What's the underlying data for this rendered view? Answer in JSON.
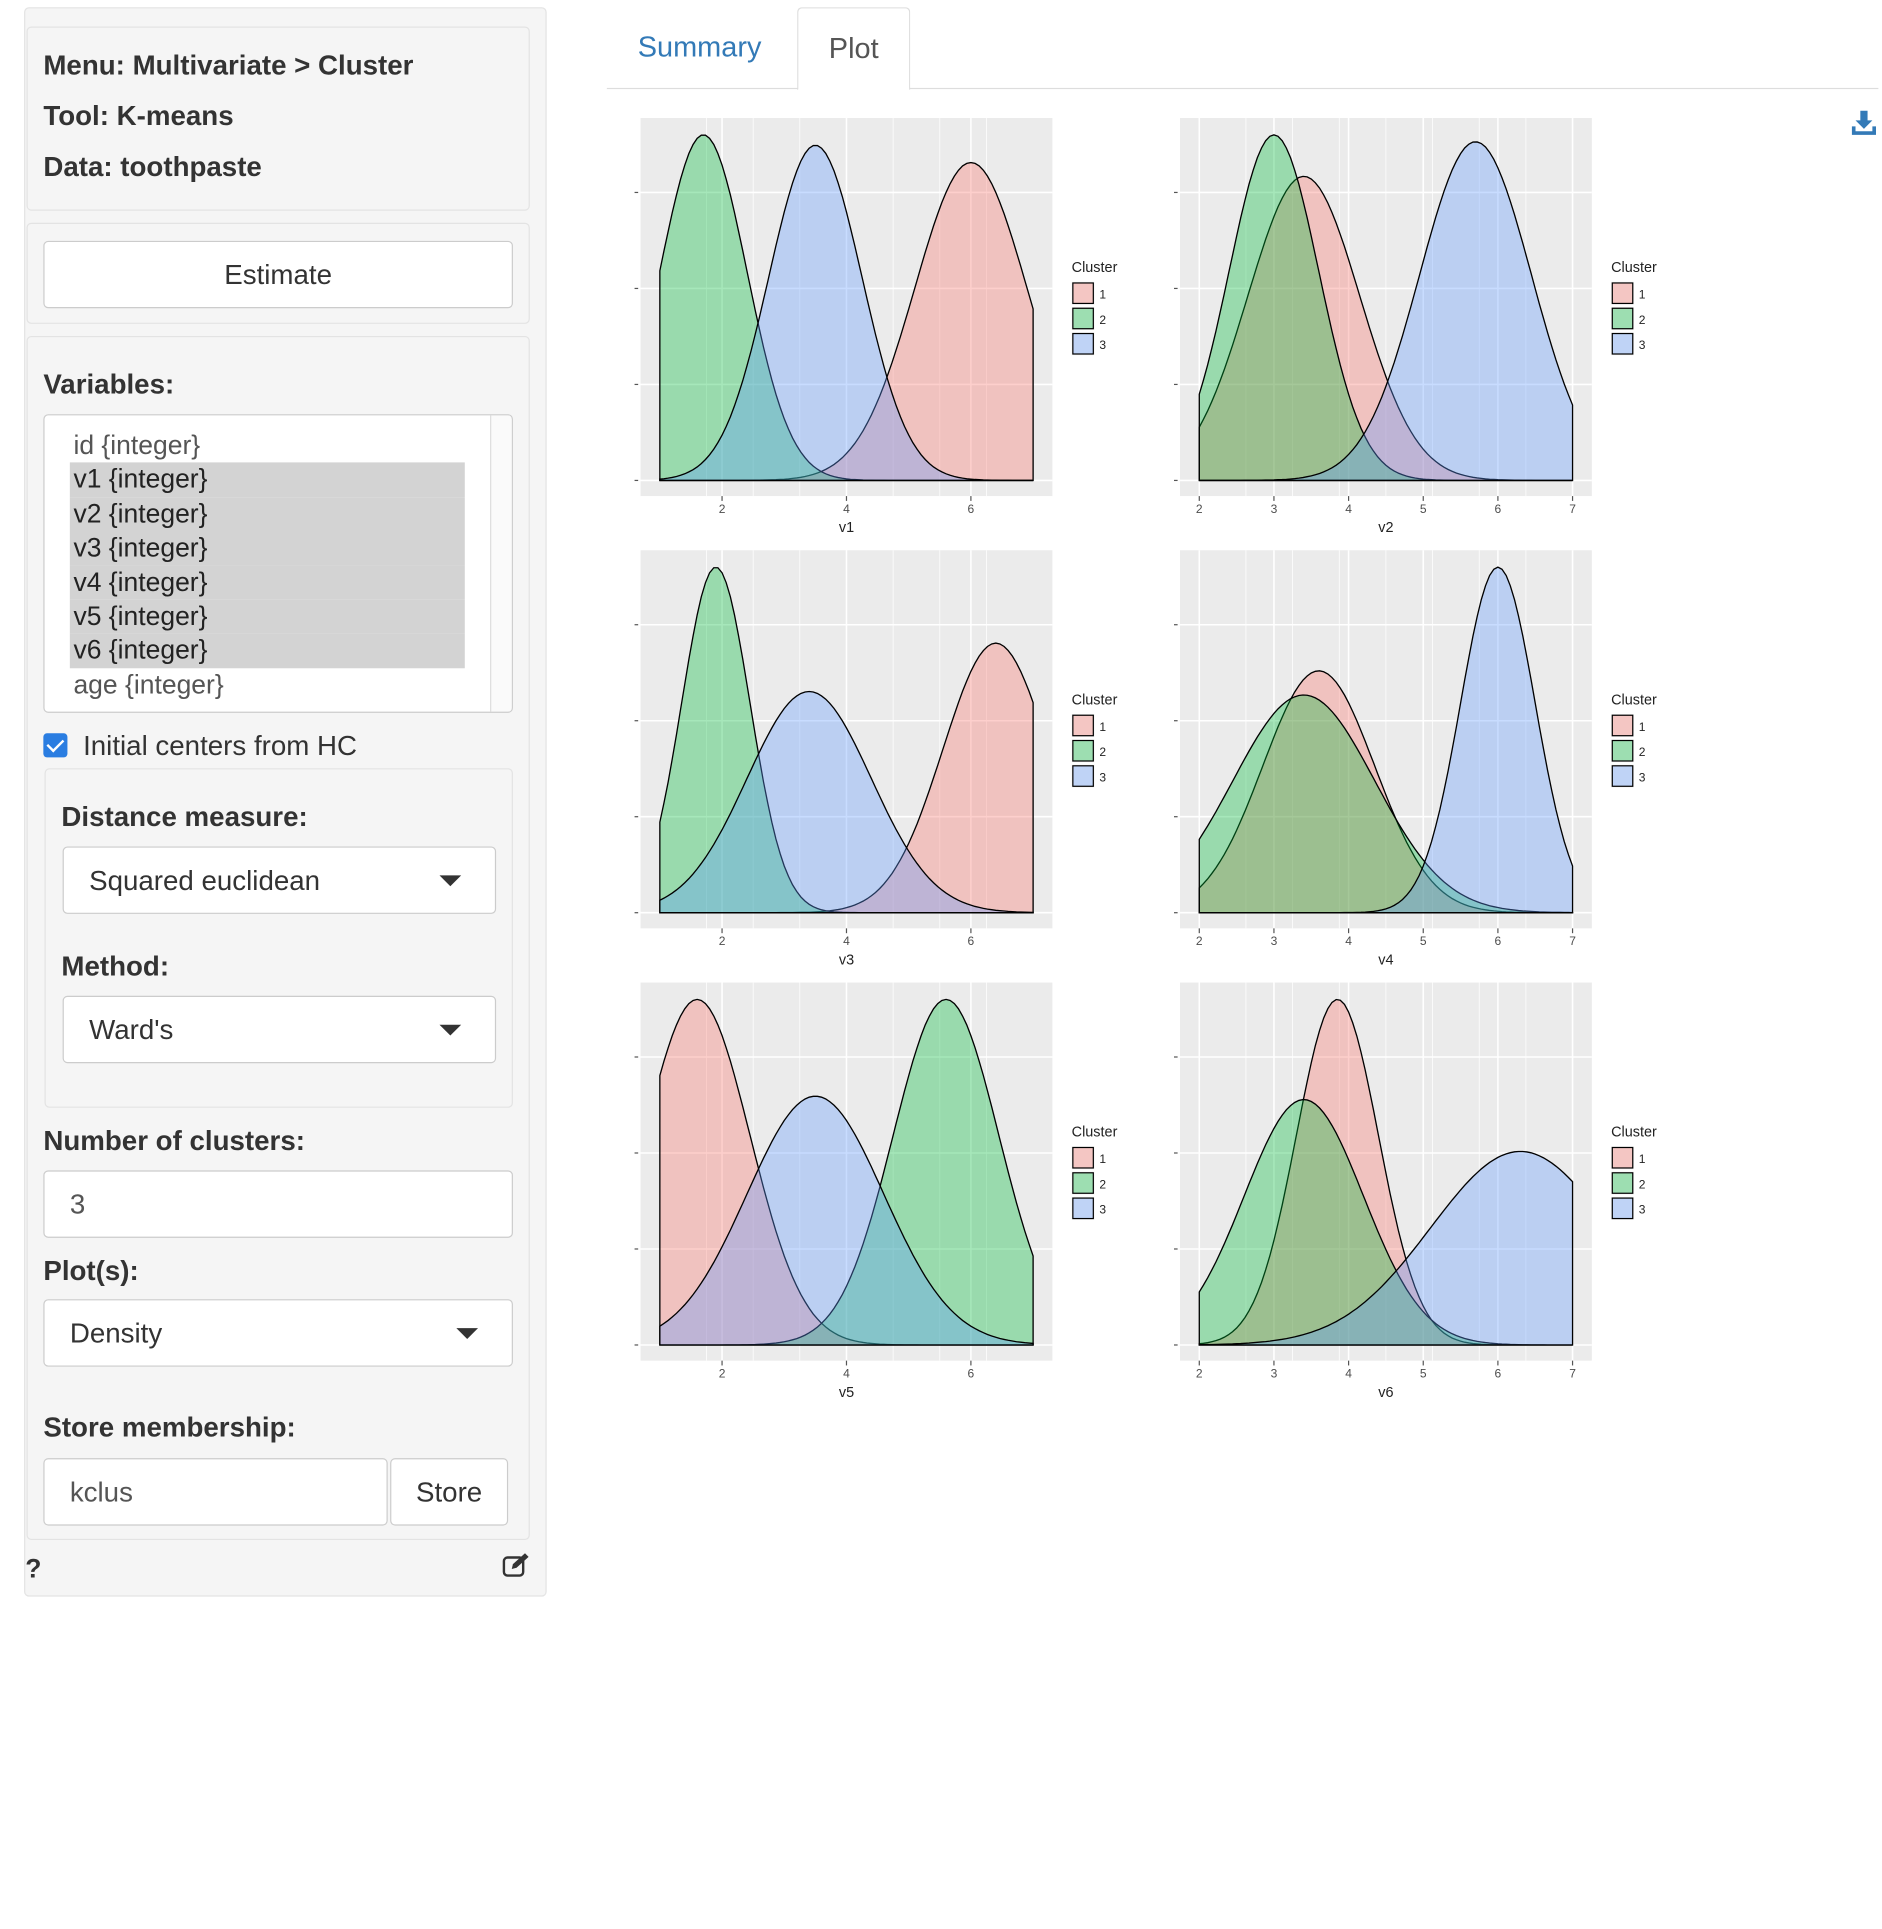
{
  "sidebar": {
    "info": {
      "menu": "Menu: Multivariate > Cluster",
      "tool": "Tool: K-means",
      "data": "Data: toothpaste"
    },
    "estimate_label": "Estimate",
    "variables_label": "Variables:",
    "variables": [
      {
        "label": "id {integer}",
        "selected": false
      },
      {
        "label": "v1 {integer}",
        "selected": true
      },
      {
        "label": "v2 {integer}",
        "selected": true
      },
      {
        "label": "v3 {integer}",
        "selected": true
      },
      {
        "label": "v4 {integer}",
        "selected": true
      },
      {
        "label": "v5 {integer}",
        "selected": true
      },
      {
        "label": "v6 {integer}",
        "selected": true
      },
      {
        "label": "age {integer}",
        "selected": false
      }
    ],
    "hc_checkbox": {
      "label": "Initial centers from HC",
      "checked": true
    },
    "distance_label": "Distance measure:",
    "distance_value": "Squared euclidean",
    "method_label": "Method:",
    "method_value": "Ward's",
    "nclus_label": "Number of clusters:",
    "nclus_value": "3",
    "plots_label": "Plot(s):",
    "plots_value": "Density",
    "store_label": "Store membership:",
    "store_value": "kclus",
    "store_button": "Store",
    "help": "?"
  },
  "tabs": [
    {
      "label": "Summary",
      "active": false
    },
    {
      "label": "Plot",
      "active": true
    }
  ],
  "colors": {
    "cluster1": "#f8766d",
    "cluster2": "#00ba38",
    "cluster3": "#619cff",
    "panel_bg": "#ebebeb",
    "link": "#337ab7"
  },
  "chart_data": [
    {
      "type": "area",
      "xlabel": "v1",
      "xlim": [
        1,
        7
      ],
      "xticks": [
        2,
        4,
        6
      ],
      "legend_title": "Cluster",
      "legend": [
        "1",
        "2",
        "3"
      ],
      "legend_position": "right",
      "series": [
        {
          "name": "1",
          "peak_x": 6.0,
          "peak_height": 0.92,
          "sd": 0.9
        },
        {
          "name": "2",
          "peak_x": 1.7,
          "peak_height": 1.0,
          "sd": 0.7
        },
        {
          "name": "3",
          "peak_x": 3.5,
          "peak_height": 0.97,
          "sd": 0.75
        }
      ]
    },
    {
      "type": "area",
      "xlabel": "v2",
      "xlim": [
        2,
        7
      ],
      "xticks": [
        2,
        3,
        4,
        5,
        6,
        7
      ],
      "legend_title": "Cluster",
      "legend": [
        "1",
        "2",
        "3"
      ],
      "legend_position": "right",
      "series": [
        {
          "name": "1",
          "peak_x": 3.4,
          "peak_height": 0.88,
          "sd": 0.75
        },
        {
          "name": "2",
          "peak_x": 3.0,
          "peak_height": 1.0,
          "sd": 0.6
        },
        {
          "name": "3",
          "peak_x": 5.7,
          "peak_height": 0.98,
          "sd": 0.75
        }
      ]
    },
    {
      "type": "area",
      "xlabel": "v3",
      "xlim": [
        1,
        7
      ],
      "xticks": [
        2,
        4,
        6
      ],
      "legend_title": "Cluster",
      "legend": [
        "1",
        "2",
        "3"
      ],
      "legend_position": "right",
      "series": [
        {
          "name": "1",
          "peak_x": 6.4,
          "peak_height": 0.78,
          "sd": 0.85
        },
        {
          "name": "2",
          "peak_x": 1.9,
          "peak_height": 1.0,
          "sd": 0.55
        },
        {
          "name": "3",
          "peak_x": 3.4,
          "peak_height": 0.64,
          "sd": 1.0
        }
      ]
    },
    {
      "type": "area",
      "xlabel": "v4",
      "xlim": [
        2,
        7
      ],
      "xticks": [
        2,
        3,
        4,
        5,
        6,
        7
      ],
      "legend_title": "Cluster",
      "legend": [
        "1",
        "2",
        "3"
      ],
      "legend_position": "right",
      "series": [
        {
          "name": "1",
          "peak_x": 3.6,
          "peak_height": 0.7,
          "sd": 0.75
        },
        {
          "name": "2",
          "peak_x": 3.4,
          "peak_height": 0.63,
          "sd": 0.95
        },
        {
          "name": "3",
          "peak_x": 6.0,
          "peak_height": 1.0,
          "sd": 0.5
        }
      ]
    },
    {
      "type": "area",
      "xlabel": "v5",
      "xlim": [
        1,
        7
      ],
      "xticks": [
        2,
        4,
        6
      ],
      "legend_title": "Cluster",
      "legend": [
        "1",
        "2",
        "3"
      ],
      "legend_position": "right",
      "series": [
        {
          "name": "1",
          "peak_x": 1.6,
          "peak_height": 1.0,
          "sd": 0.85
        },
        {
          "name": "2",
          "peak_x": 5.6,
          "peak_height": 1.0,
          "sd": 0.85
        },
        {
          "name": "3",
          "peak_x": 3.5,
          "peak_height": 0.72,
          "sd": 1.1
        }
      ]
    },
    {
      "type": "area",
      "xlabel": "v6",
      "xlim": [
        2,
        7
      ],
      "xticks": [
        2,
        3,
        4,
        5,
        6,
        7
      ],
      "legend_title": "Cluster",
      "legend": [
        "1",
        "2",
        "3"
      ],
      "legend_position": "right",
      "series": [
        {
          "name": "1",
          "peak_x": 3.85,
          "peak_height": 1.0,
          "sd": 0.55
        },
        {
          "name": "2",
          "peak_x": 3.4,
          "peak_height": 0.71,
          "sd": 0.8
        },
        {
          "name": "3",
          "peak_x": 6.3,
          "peak_height": 0.56,
          "sd": 1.2
        }
      ]
    }
  ]
}
